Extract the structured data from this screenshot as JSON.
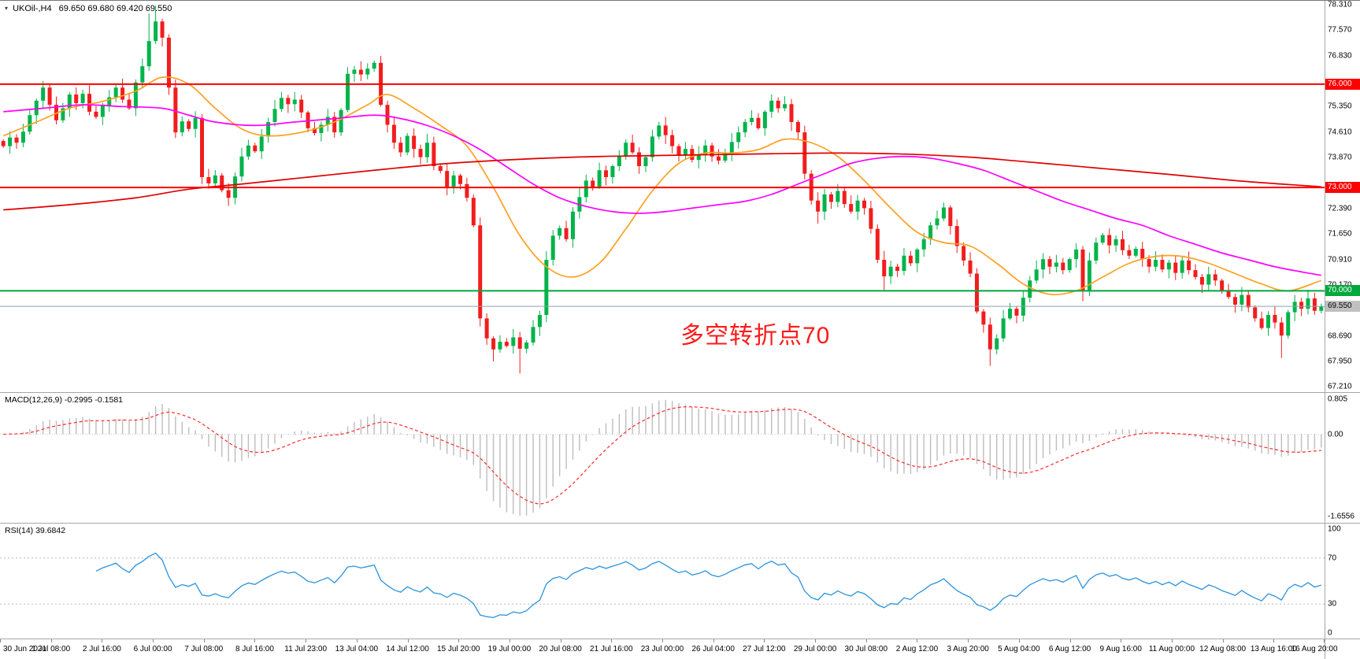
{
  "header": {
    "symbol": "UKOil-,H4",
    "ohlc": "69.650 69.680 69.420 69.550",
    "marker": "▾"
  },
  "annotation": {
    "text": "多空转折点70",
    "color": "#ff1a1a"
  },
  "indicators": {
    "macd": {
      "label": "MACD(12,26,9) -0.2995 -0.1581",
      "axis_labels": [
        "0.805",
        "0.00",
        "-1.6556"
      ]
    },
    "rsi": {
      "label": "RSI(14) 39.6842",
      "axis_labels": [
        "100",
        "70",
        "30",
        "0"
      ],
      "levels": [
        70,
        30
      ]
    }
  },
  "price_axis": {
    "labels": [
      "78.310",
      "77.570",
      "76.830",
      "75.350",
      "74.610",
      "73.870",
      "72.390",
      "71.650",
      "70.910",
      "70.170",
      "68.690",
      "67.950",
      "67.210"
    ]
  },
  "hlines": [
    {
      "price": 76.0,
      "label": "76.000",
      "color": "#ff0000",
      "width": 2
    },
    {
      "price": 73.0,
      "label": "73.000",
      "color": "#ff0000",
      "width": 2
    },
    {
      "price": 70.0,
      "label": "70.000",
      "color": "#00a83d",
      "width": 2
    }
  ],
  "bid": {
    "price": 69.55,
    "label": "69.550",
    "line_color": "#8da3ad",
    "tag_bg": "#c0c0c0",
    "tag_text": "#000000"
  },
  "time_axis": {
    "labels": [
      "30 Jun 2021",
      "1 Jul 08:00",
      "2 Jul 16:00",
      "6 Jul 00:00",
      "7 Jul 08:00",
      "8 Jul 16:00",
      "11 Jul 23:00",
      "13 Jul 04:00",
      "14 Jul 12:00",
      "15 Jul 20:00",
      "19 Jul 00:00",
      "20 Jul 08:00",
      "21 Jul 16:00",
      "23 Jul 00:00",
      "26 Jul 04:00",
      "27 Jul 12:00",
      "29 Jul 00:00",
      "30 Jul 08:00",
      "2 Aug 12:00",
      "3 Aug 20:00",
      "5 Aug 04:00",
      "6 Aug 12:00",
      "9 Aug 16:00",
      "11 Aug 00:00",
      "12 Aug 08:00",
      "13 Aug 16:00",
      "16 Aug 20:00"
    ]
  },
  "colors": {
    "bull": "#00b44a",
    "bear": "#f21d1d",
    "macd_hist": "#bdbdbd",
    "macd_signal": "#ff2a2a",
    "rsi_line": "#2a93dd",
    "axis_text": "#000000"
  },
  "chart_data": {
    "type": "candlestick",
    "symbol": "UKOil-",
    "timeframe": "H4",
    "title": "UKOil-,H4",
    "ohlc_current": [
      69.65,
      69.68,
      69.42,
      69.55
    ],
    "price_range": [
      67.06,
      78.42
    ],
    "closes": [
      74.2,
      74.45,
      74.3,
      74.62,
      75.1,
      75.52,
      75.9,
      75.4,
      74.95,
      75.3,
      75.7,
      75.45,
      75.72,
      75.2,
      75.05,
      75.38,
      75.62,
      75.9,
      75.55,
      75.3,
      76.05,
      76.52,
      77.25,
      77.82,
      77.35,
      75.9,
      74.6,
      74.92,
      74.7,
      75.02,
      73.3,
      73.12,
      73.35,
      72.92,
      72.7,
      73.32,
      73.9,
      74.22,
      74.05,
      74.48,
      74.9,
      75.28,
      75.6,
      75.42,
      75.55,
      75.18,
      74.72,
      74.58,
      74.82,
      75.05,
      74.6,
      75.25,
      76.3,
      76.42,
      76.28,
      76.45,
      76.62,
      75.4,
      74.82,
      74.3,
      74.02,
      74.5,
      74.12,
      73.88,
      74.3,
      73.62,
      73.48,
      73.02,
      73.35,
      73.1,
      72.7,
      71.9,
      69.2,
      68.62,
      68.3,
      68.52,
      68.4,
      68.65,
      68.32,
      68.5,
      68.95,
      69.3,
      70.9,
      71.6,
      71.82,
      71.5,
      72.3,
      72.72,
      73.2,
      73.02,
      73.5,
      73.3,
      73.62,
      73.9,
      74.3,
      74.02,
      73.62,
      73.88,
      74.48,
      74.8,
      74.52,
      74.2,
      73.92,
      74.12,
      73.8,
      73.95,
      74.22,
      73.9,
      73.78,
      74.0,
      74.32,
      74.6,
      74.9,
      75.02,
      74.72,
      75.2,
      75.52,
      75.3,
      75.42,
      74.9,
      74.6,
      73.4,
      72.62,
      72.3,
      72.8,
      72.58,
      72.9,
      72.52,
      72.3,
      72.62,
      72.4,
      71.8,
      70.9,
      70.42,
      70.7,
      70.58,
      71.02,
      70.8,
      71.2,
      71.5,
      71.9,
      72.1,
      72.42,
      71.88,
      71.3,
      70.88,
      70.5,
      69.4,
      69.02,
      68.3,
      68.62,
      69.2,
      69.48,
      69.28,
      69.8,
      70.3,
      70.62,
      70.92,
      70.7,
      70.82,
      70.6,
      70.92,
      71.2,
      70.0,
      70.88,
      71.4,
      71.62,
      71.32,
      71.5,
      71.18,
      71.02,
      71.22,
      70.92,
      70.7,
      70.9,
      70.62,
      70.82,
      70.52,
      70.88,
      70.6,
      70.4,
      70.18,
      70.48,
      70.3,
      70.02,
      69.82,
      69.6,
      69.88,
      69.52,
      69.2,
      68.92,
      69.3,
      69.08,
      68.7,
      69.38,
      69.68,
      69.48,
      69.78,
      69.42,
      69.55
    ],
    "wick_overrides": {
      "22": [
        78.05,
        null
      ],
      "23": [
        78.28,
        null
      ],
      "24": [
        77.9,
        null
      ],
      "74": [
        null,
        67.95
      ],
      "78": [
        null,
        67.6
      ],
      "123": [
        null,
        71.95
      ],
      "133": [
        null,
        70.02
      ],
      "149": [
        null,
        67.82
      ],
      "163": [
        null,
        69.7
      ],
      "193": [
        null,
        68.05
      ]
    },
    "overlays": [
      {
        "name": "ma-fast-orange",
        "color": "#ffa022",
        "width": 1.7,
        "points": [
          [
            0,
            74.5
          ],
          [
            5,
            74.9
          ],
          [
            10,
            75.3
          ],
          [
            15,
            75.5
          ],
          [
            20,
            75.8
          ],
          [
            24,
            76.2
          ],
          [
            28,
            76.0
          ],
          [
            32,
            75.3
          ],
          [
            36,
            74.7
          ],
          [
            40,
            74.5
          ],
          [
            45,
            74.6
          ],
          [
            50,
            74.9
          ],
          [
            55,
            75.4
          ],
          [
            58,
            75.7
          ],
          [
            62,
            75.3
          ],
          [
            66,
            74.8
          ],
          [
            70,
            74.2
          ],
          [
            74,
            73.0
          ],
          [
            78,
            71.6
          ],
          [
            82,
            70.7
          ],
          [
            86,
            70.4
          ],
          [
            90,
            70.8
          ],
          [
            94,
            71.8
          ],
          [
            98,
            72.9
          ],
          [
            102,
            73.7
          ],
          [
            106,
            74.0
          ],
          [
            110,
            74.0
          ],
          [
            114,
            74.1
          ],
          [
            118,
            74.4
          ],
          [
            122,
            74.3
          ],
          [
            126,
            73.9
          ],
          [
            130,
            73.2
          ],
          [
            134,
            72.4
          ],
          [
            138,
            71.7
          ],
          [
            142,
            71.4
          ],
          [
            146,
            71.3
          ],
          [
            150,
            70.8
          ],
          [
            154,
            70.2
          ],
          [
            158,
            69.9
          ],
          [
            162,
            70.0
          ],
          [
            166,
            70.4
          ],
          [
            170,
            70.8
          ],
          [
            174,
            71.0
          ],
          [
            178,
            71.0
          ],
          [
            182,
            70.8
          ],
          [
            186,
            70.5
          ],
          [
            190,
            70.2
          ],
          [
            194,
            70.0
          ],
          [
            199,
            70.3
          ]
        ]
      },
      {
        "name": "ma-mid-magenta",
        "color": "#ff00ff",
        "width": 1.7,
        "points": [
          [
            0,
            75.2
          ],
          [
            6,
            75.3
          ],
          [
            12,
            75.4
          ],
          [
            18,
            75.35
          ],
          [
            24,
            75.3
          ],
          [
            28,
            75.1
          ],
          [
            32,
            74.9
          ],
          [
            38,
            74.8
          ],
          [
            44,
            74.9
          ],
          [
            50,
            75.0
          ],
          [
            56,
            75.1
          ],
          [
            60,
            75.0
          ],
          [
            64,
            74.8
          ],
          [
            68,
            74.5
          ],
          [
            72,
            74.1
          ],
          [
            76,
            73.6
          ],
          [
            80,
            73.1
          ],
          [
            84,
            72.7
          ],
          [
            88,
            72.45
          ],
          [
            92,
            72.3
          ],
          [
            96,
            72.25
          ],
          [
            100,
            72.3
          ],
          [
            104,
            72.4
          ],
          [
            108,
            72.5
          ],
          [
            112,
            72.6
          ],
          [
            116,
            72.8
          ],
          [
            120,
            73.1
          ],
          [
            124,
            73.4
          ],
          [
            128,
            73.7
          ],
          [
            132,
            73.85
          ],
          [
            136,
            73.9
          ],
          [
            140,
            73.85
          ],
          [
            144,
            73.7
          ],
          [
            148,
            73.5
          ],
          [
            152,
            73.2
          ],
          [
            156,
            72.9
          ],
          [
            160,
            72.6
          ],
          [
            164,
            72.35
          ],
          [
            168,
            72.1
          ],
          [
            172,
            71.9
          ],
          [
            176,
            71.6
          ],
          [
            180,
            71.35
          ],
          [
            184,
            71.1
          ],
          [
            188,
            70.9
          ],
          [
            192,
            70.7
          ],
          [
            196,
            70.55
          ],
          [
            199,
            70.45
          ]
        ]
      },
      {
        "name": "ma-slow-red",
        "color": "#e00000",
        "width": 1.7,
        "points": [
          [
            0,
            72.35
          ],
          [
            10,
            72.5
          ],
          [
            20,
            72.7
          ],
          [
            28,
            72.95
          ],
          [
            36,
            73.1
          ],
          [
            46,
            73.3
          ],
          [
            56,
            73.5
          ],
          [
            66,
            73.68
          ],
          [
            76,
            73.8
          ],
          [
            86,
            73.88
          ],
          [
            96,
            73.92
          ],
          [
            106,
            73.95
          ],
          [
            116,
            73.98
          ],
          [
            126,
            74.0
          ],
          [
            136,
            73.97
          ],
          [
            146,
            73.88
          ],
          [
            156,
            73.72
          ],
          [
            166,
            73.55
          ],
          [
            176,
            73.38
          ],
          [
            186,
            73.2
          ],
          [
            193,
            73.1
          ],
          [
            199,
            73.02
          ]
        ]
      }
    ],
    "macd": {
      "fast": 12,
      "slow": 26,
      "signal": 9,
      "display_values": [
        "-0.2995",
        "-0.1581"
      ]
    },
    "rsi": {
      "period": 14,
      "display_value": 39.6842,
      "range": [
        0,
        100
      ]
    }
  }
}
